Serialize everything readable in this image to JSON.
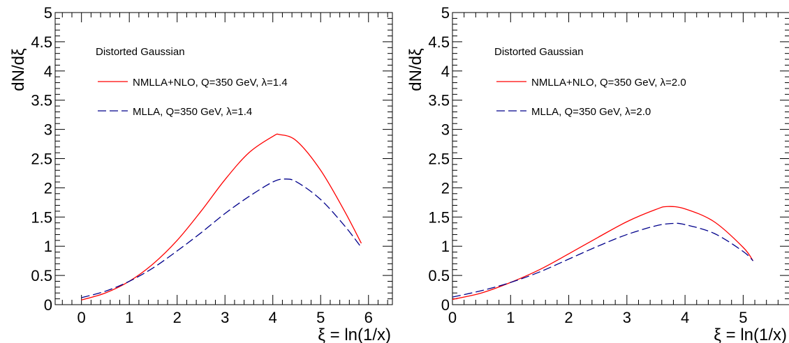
{
  "chart_data": [
    {
      "type": "line",
      "title": "",
      "xlabel": "ξ = ln(1/x)",
      "ylabel": "dN/dξ",
      "xlim": [
        -0.55,
        6.5
      ],
      "ylim": [
        0,
        5
      ],
      "xticks": [
        "0",
        "1",
        "2",
        "3",
        "4",
        "5",
        "6"
      ],
      "yticks": [
        "0",
        "0.5",
        "1",
        "1.5",
        "2",
        "2.5",
        "3",
        "3.5",
        "4",
        "4.5",
        "5"
      ],
      "grid": false,
      "legend_header": "Distorted Gaussian",
      "legend_position": "top-left",
      "series": [
        {
          "name": "NMLLA+NLO, Q=350 GeV, λ=1.4",
          "color": "#ff0000",
          "style": "solid",
          "x": [
            0,
            0.5,
            1,
            1.5,
            2,
            2.5,
            3,
            3.5,
            4,
            4.15,
            4.5,
            5,
            5.5,
            5.85
          ],
          "y": [
            0.08,
            0.2,
            0.4,
            0.7,
            1.1,
            1.6,
            2.14,
            2.6,
            2.88,
            2.91,
            2.8,
            2.3,
            1.6,
            1.05
          ]
        },
        {
          "name": "MLLA, Q=350 GeV, λ=1.4",
          "color": "#00008b",
          "style": "dashed",
          "x": [
            0,
            0.5,
            1,
            1.5,
            2,
            2.5,
            3,
            3.5,
            4,
            4.25,
            4.5,
            5,
            5.5,
            5.85
          ],
          "y": [
            0.12,
            0.23,
            0.4,
            0.63,
            0.92,
            1.23,
            1.56,
            1.85,
            2.1,
            2.15,
            2.1,
            1.8,
            1.35,
            0.98
          ]
        }
      ]
    },
    {
      "type": "line",
      "title": "",
      "xlabel": "ξ = ln(1/x)",
      "ylabel": "dN/dξ",
      "xlim": [
        0,
        5.8
      ],
      "ylim": [
        0,
        5
      ],
      "xticks": [
        "0",
        "1",
        "2",
        "3",
        "4",
        "5"
      ],
      "yticks": [
        "0",
        "0.5",
        "1",
        "1.5",
        "2",
        "2.5",
        "3",
        "3.5",
        "4",
        "4.5",
        "5"
      ],
      "grid": false,
      "legend_header": "Distorted Gaussian",
      "legend_position": "top-left",
      "series": [
        {
          "name": "NMLLA+NLO, Q=350 GeV, λ=2.0",
          "color": "#ff0000",
          "style": "solid",
          "x": [
            0,
            0.5,
            1,
            1.5,
            2,
            2.5,
            3,
            3.5,
            3.7,
            4,
            4.5,
            5,
            5.17
          ],
          "y": [
            0.09,
            0.2,
            0.38,
            0.6,
            0.87,
            1.15,
            1.42,
            1.63,
            1.68,
            1.64,
            1.42,
            0.98,
            0.75
          ]
        },
        {
          "name": "MLLA, Q=350 GeV, λ=2.0",
          "color": "#00008b",
          "style": "dashed",
          "x": [
            0,
            0.5,
            1,
            1.5,
            2,
            2.5,
            3,
            3.5,
            3.8,
            4,
            4.5,
            5,
            5.17
          ],
          "y": [
            0.13,
            0.24,
            0.38,
            0.56,
            0.78,
            1.0,
            1.2,
            1.35,
            1.39,
            1.37,
            1.22,
            0.91,
            0.75
          ]
        }
      ]
    }
  ]
}
